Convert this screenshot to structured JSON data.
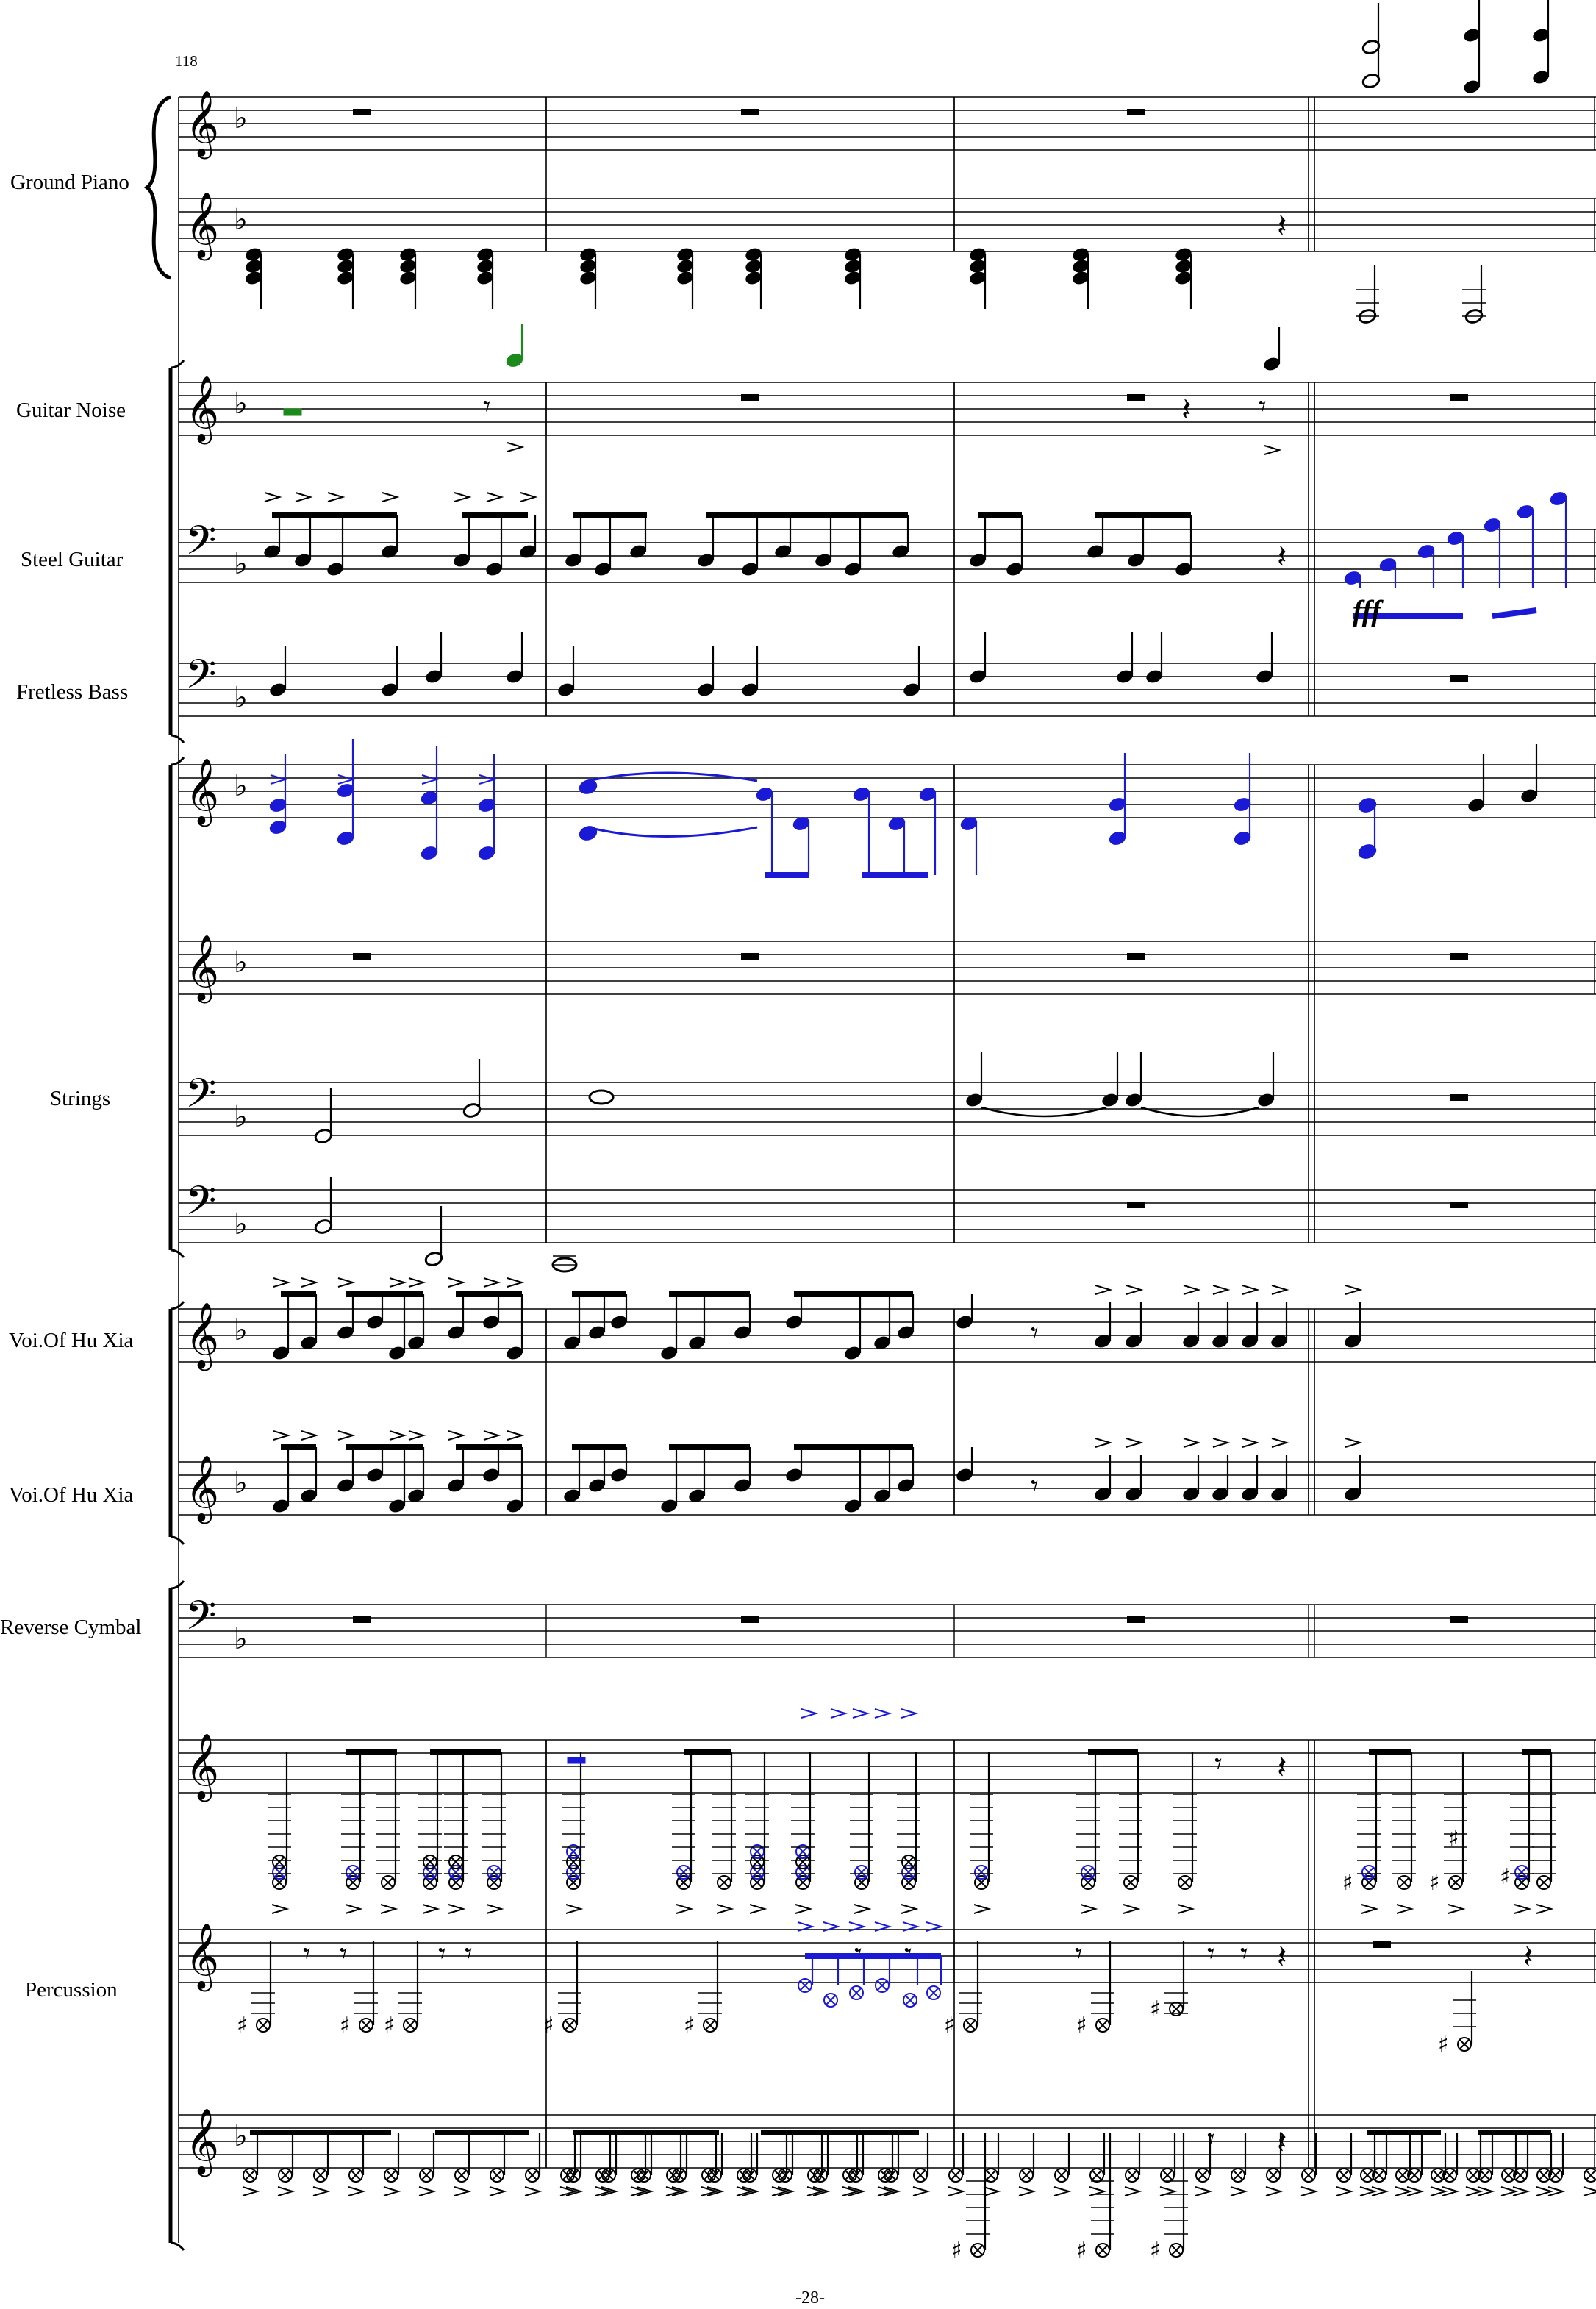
{
  "score": {
    "measure_number": "118",
    "page_number": "-28-",
    "dynamic": "fff"
  },
  "instruments": [
    {
      "id": "ground-piano",
      "label": "Ground Piano"
    },
    {
      "id": "guitar-noise",
      "label": "Guitar Noise"
    },
    {
      "id": "steel-guitar",
      "label": "Steel Guitar"
    },
    {
      "id": "fretless-bass",
      "label": "Fretless Bass"
    },
    {
      "id": "strings",
      "label": "Strings"
    },
    {
      "id": "voi-1",
      "label": "Voi.Of Hu Xia"
    },
    {
      "id": "voi-2",
      "label": "Voi.Of Hu Xia"
    },
    {
      "id": "reverse-cymbal",
      "label": "Reverse Cymbal"
    },
    {
      "id": "percussion",
      "label": "Percussion"
    }
  ],
  "colors": {
    "accent_blue": "#1a1ad6",
    "accent_green": "#1a8a1a",
    "ink": "#000000"
  }
}
